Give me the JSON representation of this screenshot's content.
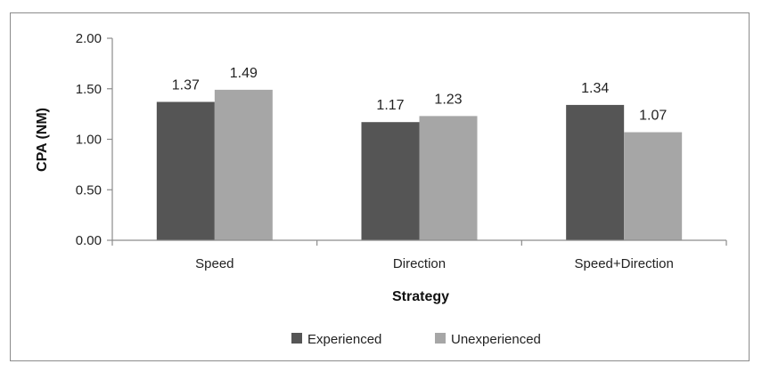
{
  "chart_data": {
    "type": "bar",
    "title": "",
    "xlabel": "Strategy",
    "ylabel": "CPA  (NM)",
    "categories": [
      "Speed",
      "Direction",
      "Speed+Direction"
    ],
    "series": [
      {
        "name": "Experienced",
        "values": [
          1.37,
          1.17,
          1.34
        ],
        "color": "#555555"
      },
      {
        "name": "Unexperienced",
        "values": [
          1.49,
          1.23,
          1.07
        ],
        "color": "#a6a6a6"
      }
    ],
    "ylim": [
      0,
      2
    ],
    "yticks": [
      "0.00",
      "0.50",
      "1.00",
      "1.50",
      "2.00"
    ],
    "value_labels": [
      [
        "1.37",
        "1.17",
        "1.34"
      ],
      [
        "1.49",
        "1.23",
        "1.07"
      ]
    ],
    "grid": false,
    "legend_position": "bottom"
  }
}
